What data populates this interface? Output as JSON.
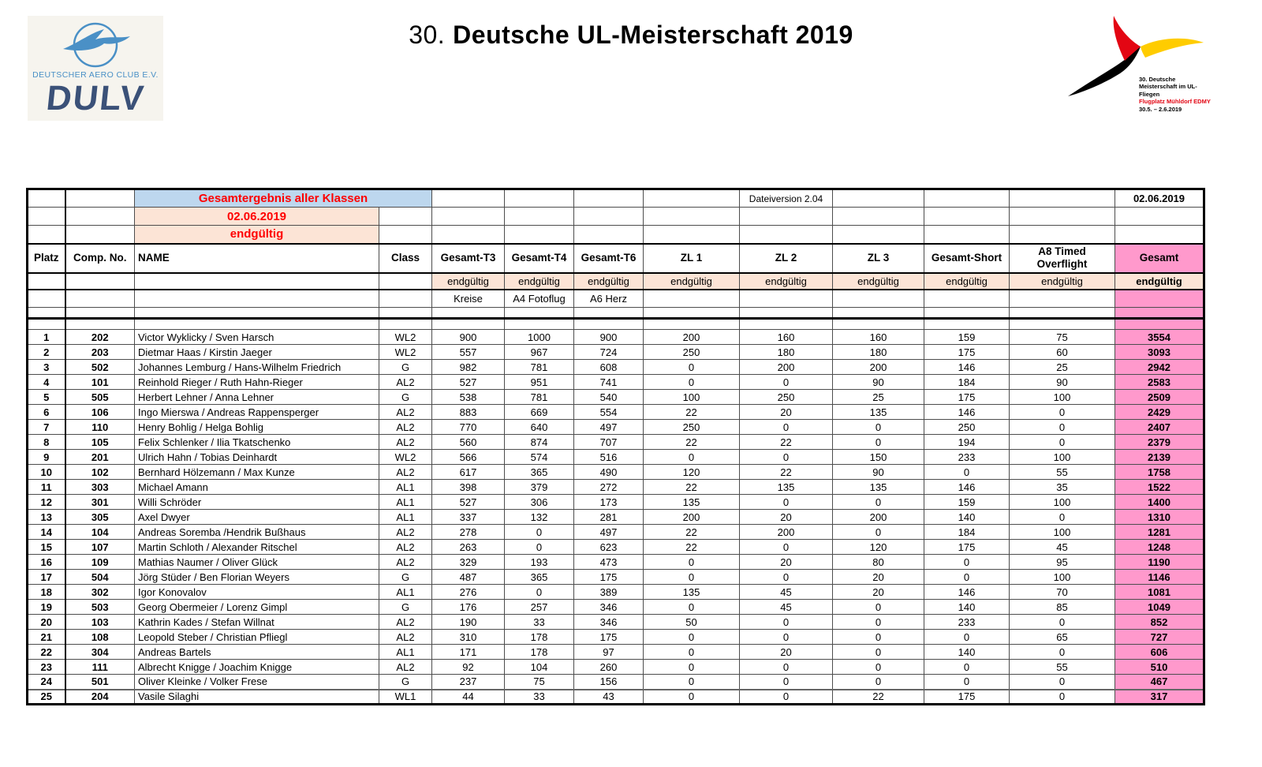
{
  "header": {
    "title_prefix": "30.",
    "title_main": "Deutsche UL-Meisterschaft 2019",
    "left_logo": {
      "org_name": "DEUTSCHER AERO CLUB E.V.",
      "abbr": "DULV",
      "bird_icon": "blue-bird-in-circle-icon"
    },
    "right_logo": {
      "bird_icon": "black-red-gold-bird-icon",
      "line1": "30. Deutsche",
      "line2": "Meisterschaft im UL-Fliegen",
      "line3": "Flugplatz Mühldorf EDMY",
      "line4": "30.5. – 2.6.2019"
    }
  },
  "table": {
    "meta": {
      "banner": "Gesamtergebnis aller Klassen",
      "date": "02.06.2019",
      "status": "endgültig",
      "file_version": "Dateiversion 2.04",
      "date_right": "02.06.2019"
    },
    "columns": [
      "Platz",
      "Comp. No.",
      "NAME",
      "Class",
      "Gesamt-T3",
      "Gesamt-T4",
      "Gesamt-T6",
      "ZL 1",
      "ZL 2",
      "ZL 3",
      "Gesamt-Short",
      "A8 Timed Overflight",
      "Gesamt"
    ],
    "status_label": "endgültig",
    "task_labels": {
      "t3": "Kreise",
      "t4": "A4 Fotoflug",
      "t6": "A6 Herz"
    },
    "rows": [
      [
        "1",
        "202",
        "Victor Wyklicky / Sven Harsch",
        "WL2",
        "900",
        "1000",
        "900",
        "200",
        "160",
        "160",
        "159",
        "75",
        "3554"
      ],
      [
        "2",
        "203",
        "Dietmar Haas / Kirstin Jaeger",
        "WL2",
        "557",
        "967",
        "724",
        "250",
        "180",
        "180",
        "175",
        "60",
        "3093"
      ],
      [
        "3",
        "502",
        "Johannes Lemburg / Hans-Wilhelm Friedrich",
        "G",
        "982",
        "781",
        "608",
        "0",
        "200",
        "200",
        "146",
        "25",
        "2942"
      ],
      [
        "4",
        "101",
        "Reinhold Rieger / Ruth Hahn-Rieger",
        "AL2",
        "527",
        "951",
        "741",
        "0",
        "0",
        "90",
        "184",
        "90",
        "2583"
      ],
      [
        "5",
        "505",
        "Herbert Lehner / Anna Lehner",
        "G",
        "538",
        "781",
        "540",
        "100",
        "250",
        "25",
        "175",
        "100",
        "2509"
      ],
      [
        "6",
        "106",
        "Ingo Mierswa / Andreas Rappensperger",
        "AL2",
        "883",
        "669",
        "554",
        "22",
        "20",
        "135",
        "146",
        "0",
        "2429"
      ],
      [
        "7",
        "110",
        "Henry Bohlig / Helga Bohlig",
        "AL2",
        "770",
        "640",
        "497",
        "250",
        "0",
        "0",
        "250",
        "0",
        "2407"
      ],
      [
        "8",
        "105",
        "Felix Schlenker / Ilia Tkatschenko",
        "AL2",
        "560",
        "874",
        "707",
        "22",
        "22",
        "0",
        "194",
        "0",
        "2379"
      ],
      [
        "9",
        "201",
        "Ulrich Hahn / Tobias Deinhardt",
        "WL2",
        "566",
        "574",
        "516",
        "0",
        "0",
        "150",
        "233",
        "100",
        "2139"
      ],
      [
        "10",
        "102",
        "Bernhard Hölzemann / Max Kunze",
        "AL2",
        "617",
        "365",
        "490",
        "120",
        "22",
        "90",
        "0",
        "55",
        "1758"
      ],
      [
        "11",
        "303",
        "Michael Amann",
        "AL1",
        "398",
        "379",
        "272",
        "22",
        "135",
        "135",
        "146",
        "35",
        "1522"
      ],
      [
        "12",
        "301",
        "Willi Schröder",
        "AL1",
        "527",
        "306",
        "173",
        "135",
        "0",
        "0",
        "159",
        "100",
        "1400"
      ],
      [
        "13",
        "305",
        "Axel Dwyer",
        "AL1",
        "337",
        "132",
        "281",
        "200",
        "20",
        "200",
        "140",
        "0",
        "1310"
      ],
      [
        "14",
        "104",
        "Andreas Soremba /Hendrik Bußhaus",
        "AL2",
        "278",
        "0",
        "497",
        "22",
        "200",
        "0",
        "184",
        "100",
        "1281"
      ],
      [
        "15",
        "107",
        "Martin Schloth / Alexander Ritschel",
        "AL2",
        "263",
        "0",
        "623",
        "22",
        "0",
        "120",
        "175",
        "45",
        "1248"
      ],
      [
        "16",
        "109",
        "Mathias Naumer / Oliver Glück",
        "AL2",
        "329",
        "193",
        "473",
        "0",
        "20",
        "80",
        "0",
        "95",
        "1190"
      ],
      [
        "17",
        "504",
        "Jörg Stüder / Ben Florian Weyers",
        "G",
        "487",
        "365",
        "175",
        "0",
        "0",
        "20",
        "0",
        "100",
        "1146"
      ],
      [
        "18",
        "302",
        "Igor Konovalov",
        "AL1",
        "276",
        "0",
        "389",
        "135",
        "45",
        "20",
        "146",
        "70",
        "1081"
      ],
      [
        "19",
        "503",
        "Georg Obermeier / Lorenz Gimpl",
        "G",
        "176",
        "257",
        "346",
        "0",
        "45",
        "0",
        "140",
        "85",
        "1049"
      ],
      [
        "20",
        "103",
        "Kathrin Kades / Stefan Willnat",
        "AL2",
        "190",
        "33",
        "346",
        "50",
        "0",
        "0",
        "233",
        "0",
        "852"
      ],
      [
        "21",
        "108",
        "Leopold Steber / Christian Pfliegl",
        "AL2",
        "310",
        "178",
        "175",
        "0",
        "0",
        "0",
        "0",
        "65",
        "727"
      ],
      [
        "22",
        "304",
        "Andreas Bartels",
        "AL1",
        "171",
        "178",
        "97",
        "0",
        "20",
        "0",
        "140",
        "0",
        "606"
      ],
      [
        "23",
        "111",
        "Albrecht Knigge / Joachim Knigge",
        "AL2",
        "92",
        "104",
        "260",
        "0",
        "0",
        "0",
        "0",
        "55",
        "510"
      ],
      [
        "24",
        "501",
        "Oliver Kleinke / Volker Frese",
        "G",
        "237",
        "75",
        "156",
        "0",
        "0",
        "0",
        "0",
        "0",
        "467"
      ],
      [
        "25",
        "204",
        "Vasile Silaghi",
        "WL1",
        "44",
        "33",
        "43",
        "0",
        "0",
        "22",
        "175",
        "0",
        "317"
      ]
    ]
  },
  "colors": {
    "total_column_pink": "#FF99CC",
    "status_peach": "#FCE4D6",
    "banner_blue": "#BDD7EE",
    "accent_red": "#FF0000",
    "logo_blue": "#4A90C6",
    "logo_navy": "#3B5178",
    "event_red": "#E30613",
    "event_gold": "#FFCC00"
  }
}
